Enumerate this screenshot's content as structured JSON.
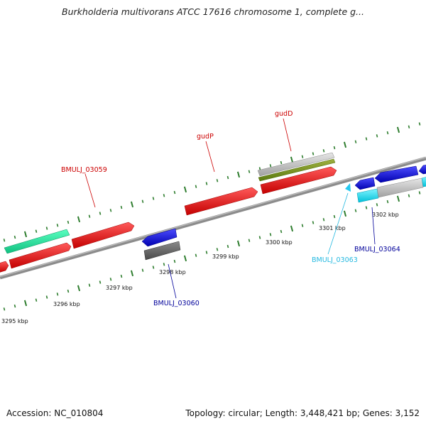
{
  "title": "Burkholderia multivorans ATCC 17616 chromosome 1, complete g...",
  "footer": {
    "accession": "Accession: NC_010804",
    "summary": "Topology: circular; Length: 3,448,421 bp; Genes: 3,152"
  },
  "colors": {
    "backbone": "#8c8c8c",
    "tick": "#2e7d2e",
    "label_red": "#cc0000",
    "label_blue": "#00009a",
    "label_cyan": "#22b8e0"
  },
  "tick_labels": [
    {
      "text": "3295 kbp"
    },
    {
      "text": "3296 kbp"
    },
    {
      "text": "3297 kbp"
    },
    {
      "text": "3298 kbp"
    },
    {
      "text": "3299 kbp"
    },
    {
      "text": "3300 kbp"
    },
    {
      "text": "3301 kbp"
    },
    {
      "text": "3302 kbp"
    }
  ],
  "genes": [
    {
      "label": "BMULJ_03059",
      "color": "#cc0000"
    },
    {
      "label": "gudP",
      "color": "#cc0000"
    },
    {
      "label": "gudD",
      "color": "#cc0000"
    },
    {
      "label": "BMULJ_03060",
      "color": "#00009a"
    },
    {
      "label": "BMULJ_03063",
      "color": "#22b8e0"
    },
    {
      "label": "BMULJ_03064",
      "color": "#00009a"
    }
  ]
}
